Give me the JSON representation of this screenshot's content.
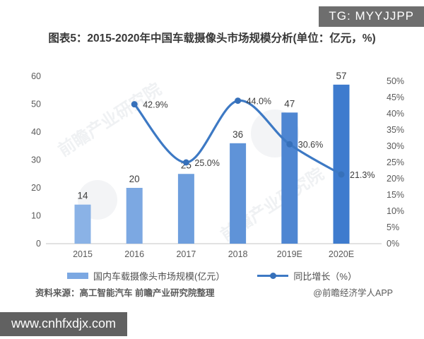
{
  "page": {
    "tg_badge": "TG: MYYJJPP",
    "site_badge": "www.cnhfxdjx.com",
    "source_left": "资料来源：高工智能汽车 前瞻产业研究院整理",
    "source_right": "@前瞻经济学人APP",
    "watermark_text": "前瞻产业研究院"
  },
  "chart_data": {
    "type": "bar+line",
    "title": "图表5：2015-2020年中国车载摄像头市场规模分析(单位：亿元，%)",
    "categories": [
      "2015",
      "2016",
      "2017",
      "2018",
      "2019E",
      "2020E"
    ],
    "series": [
      {
        "name": "国内车载摄像头市场规模(亿元）",
        "type": "bar",
        "axis": "left",
        "values": [
          14,
          20,
          25,
          36,
          47,
          57
        ],
        "bar_colors": [
          "#8ab2e6",
          "#7ca8e2",
          "#6e9edd",
          "#5f93d8",
          "#4e86d2",
          "#3e7bce"
        ]
      },
      {
        "name": "同比增长（%）",
        "type": "line",
        "axis": "right",
        "values": [
          null,
          42.9,
          25.0,
          44.0,
          30.6,
          21.3
        ],
        "point_labels": [
          null,
          "42.9%",
          "25.0%",
          "44.0%",
          "30.6%",
          "21.3%"
        ],
        "line_color": "#3d79c4",
        "marker_color": "#3670ba"
      }
    ],
    "left_axis": {
      "min": 0,
      "max": 60,
      "tick_values": [
        0,
        10,
        20,
        30,
        40,
        50,
        60
      ],
      "tick_labels": [
        "0",
        "10",
        "20",
        "30",
        "40",
        "50",
        "60"
      ]
    },
    "right_axis": {
      "min": 0,
      "max": 50,
      "tick_values": [
        0,
        5,
        10,
        15,
        20,
        25,
        30,
        35,
        40,
        45,
        50
      ],
      "tick_labels": [
        "0%",
        "5%",
        "10%",
        "15%",
        "20%",
        "25%",
        "30%",
        "35%",
        "40%",
        "45%",
        "50%"
      ]
    },
    "grid": false,
    "legend_position": "bottom",
    "colors": {
      "axis_text": "#5a5a5a",
      "data_label": "#3d3d3d",
      "baseline": "#d8d8d8"
    }
  }
}
